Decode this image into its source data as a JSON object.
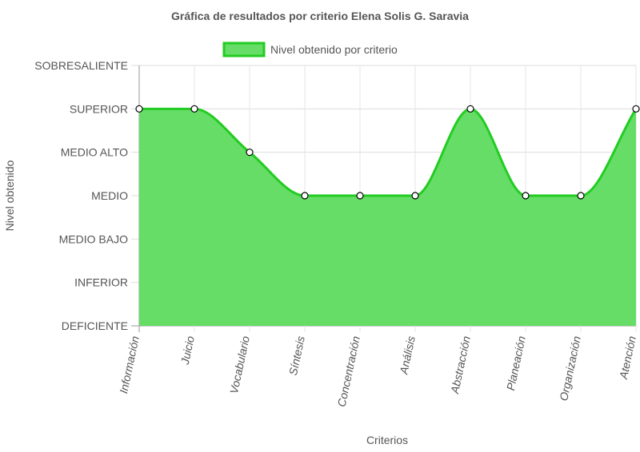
{
  "chart_data": {
    "type": "area",
    "title": "Gráfica de resultados por criterio Elena Solis G. Saravia",
    "xlabel": "Criterios",
    "ylabel": "Nivel obtenido",
    "levels": [
      "DEFICIENTE",
      "INFERIOR",
      "MEDIO BAJO",
      "MEDIO",
      "MEDIO ALTO",
      "SUPERIOR",
      "SOBRESALIENTE"
    ],
    "categories": [
      "Información",
      "Juicio",
      "Vocabulario",
      "Síntesis",
      "Concentración",
      "Análisis",
      "Abstracción",
      "Planeación",
      "Organización",
      "Atención"
    ],
    "series": [
      {
        "name": "Nivel obtenido por criterio",
        "values": [
          5,
          5,
          4,
          3,
          3,
          3,
          5,
          3,
          3,
          5
        ],
        "fill": "#66dd66",
        "stroke": "#22cc22"
      }
    ],
    "ylim": [
      0,
      6
    ],
    "grid": true,
    "legend": "top-center"
  }
}
